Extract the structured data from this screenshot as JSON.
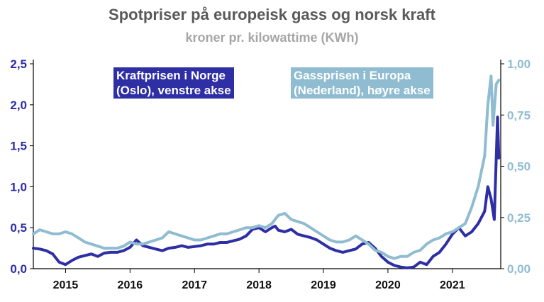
{
  "title": "Spotpriser på europeisk gass og norsk kraft",
  "subtitle": "kroner pr. kilowattime (KWh)",
  "colors": {
    "kraft": "#2e2ea5",
    "gass": "#8fbcd0",
    "axis": "#000000"
  },
  "legend": {
    "kraft_line1": "Kraftprisen i Norge",
    "kraft_line2": "(Oslo), venstre akse",
    "gass_line1": "Gassprisen i Europa",
    "gass_line2": "(Nederland), høyre akse"
  },
  "chart_data": {
    "type": "line",
    "x_ticks": [
      "2015",
      "2016",
      "2017",
      "2018",
      "2019",
      "2020",
      "2021"
    ],
    "x_range": [
      2014.5,
      2021.75
    ],
    "y_left": {
      "range": [
        0,
        2.5
      ],
      "ticks": [
        "0,0",
        "0,5",
        "1,0",
        "1,5",
        "2,0",
        "2,5"
      ]
    },
    "y_right": {
      "range": [
        0,
        1.0
      ],
      "ticks": [
        "0,00",
        "0,25",
        "0,50",
        "0,75",
        "1,00"
      ]
    },
    "series": [
      {
        "name": "Kraftprisen i Norge (Oslo), venstre akse",
        "axis": "left",
        "x": [
          2014.5,
          2014.6,
          2014.7,
          2014.8,
          2014.9,
          2015.0,
          2015.1,
          2015.2,
          2015.3,
          2015.4,
          2015.5,
          2015.6,
          2015.7,
          2015.8,
          2015.9,
          2016.0,
          2016.1,
          2016.2,
          2016.3,
          2016.4,
          2016.5,
          2016.6,
          2016.7,
          2016.8,
          2016.9,
          2017.0,
          2017.1,
          2017.2,
          2017.3,
          2017.4,
          2017.5,
          2017.6,
          2017.7,
          2017.8,
          2017.9,
          2018.0,
          2018.1,
          2018.2,
          2018.25,
          2018.3,
          2018.4,
          2018.5,
          2018.6,
          2018.7,
          2018.8,
          2018.9,
          2019.0,
          2019.1,
          2019.2,
          2019.3,
          2019.4,
          2019.5,
          2019.6,
          2019.7,
          2019.8,
          2019.9,
          2020.0,
          2020.1,
          2020.2,
          2020.3,
          2020.4,
          2020.5,
          2020.6,
          2020.7,
          2020.8,
          2020.9,
          2021.0,
          2021.1,
          2021.2,
          2021.3,
          2021.4,
          2021.5,
          2021.55,
          2021.6,
          2021.65,
          2021.7,
          2021.72
        ],
        "y": [
          0.25,
          0.24,
          0.22,
          0.18,
          0.08,
          0.05,
          0.1,
          0.14,
          0.16,
          0.18,
          0.15,
          0.19,
          0.2,
          0.2,
          0.22,
          0.26,
          0.35,
          0.28,
          0.26,
          0.24,
          0.22,
          0.25,
          0.26,
          0.28,
          0.26,
          0.27,
          0.28,
          0.3,
          0.3,
          0.32,
          0.32,
          0.34,
          0.36,
          0.4,
          0.48,
          0.5,
          0.45,
          0.5,
          0.52,
          0.47,
          0.45,
          0.48,
          0.42,
          0.4,
          0.38,
          0.35,
          0.3,
          0.25,
          0.22,
          0.2,
          0.22,
          0.24,
          0.3,
          0.32,
          0.25,
          0.15,
          0.08,
          0.04,
          0.02,
          0.01,
          0.02,
          0.08,
          0.05,
          0.15,
          0.2,
          0.3,
          0.42,
          0.5,
          0.4,
          0.45,
          0.55,
          0.7,
          1.0,
          0.85,
          0.6,
          1.85,
          1.35
        ]
      },
      {
        "name": "Gassprisen i Europa (Nederland), høyre akse",
        "axis": "right",
        "x": [
          2014.5,
          2014.6,
          2014.7,
          2014.8,
          2014.9,
          2015.0,
          2015.1,
          2015.2,
          2015.3,
          2015.4,
          2015.5,
          2015.6,
          2015.7,
          2015.8,
          2015.9,
          2016.0,
          2016.1,
          2016.2,
          2016.3,
          2016.4,
          2016.5,
          2016.6,
          2016.7,
          2016.8,
          2016.9,
          2017.0,
          2017.1,
          2017.2,
          2017.3,
          2017.4,
          2017.5,
          2017.6,
          2017.7,
          2017.8,
          2017.9,
          2018.0,
          2018.1,
          2018.2,
          2018.3,
          2018.4,
          2018.5,
          2018.6,
          2018.7,
          2018.8,
          2018.9,
          2019.0,
          2019.1,
          2019.2,
          2019.3,
          2019.4,
          2019.5,
          2019.6,
          2019.7,
          2019.8,
          2019.9,
          2020.0,
          2020.1,
          2020.2,
          2020.3,
          2020.4,
          2020.5,
          2020.6,
          2020.7,
          2020.8,
          2020.9,
          2021.0,
          2021.1,
          2021.2,
          2021.3,
          2021.4,
          2021.5,
          2021.55,
          2021.6,
          2021.63,
          2021.68,
          2021.72
        ],
        "y": [
          0.17,
          0.19,
          0.18,
          0.17,
          0.17,
          0.18,
          0.17,
          0.15,
          0.13,
          0.12,
          0.11,
          0.1,
          0.1,
          0.1,
          0.11,
          0.13,
          0.12,
          0.12,
          0.13,
          0.14,
          0.15,
          0.18,
          0.17,
          0.16,
          0.15,
          0.14,
          0.14,
          0.15,
          0.16,
          0.17,
          0.17,
          0.18,
          0.19,
          0.2,
          0.2,
          0.21,
          0.2,
          0.22,
          0.26,
          0.27,
          0.24,
          0.23,
          0.22,
          0.2,
          0.18,
          0.16,
          0.14,
          0.13,
          0.13,
          0.14,
          0.16,
          0.14,
          0.12,
          0.09,
          0.08,
          0.06,
          0.05,
          0.06,
          0.06,
          0.08,
          0.09,
          0.12,
          0.14,
          0.15,
          0.17,
          0.18,
          0.2,
          0.22,
          0.3,
          0.4,
          0.55,
          0.8,
          0.94,
          0.7,
          0.9,
          0.92
        ]
      }
    ]
  }
}
